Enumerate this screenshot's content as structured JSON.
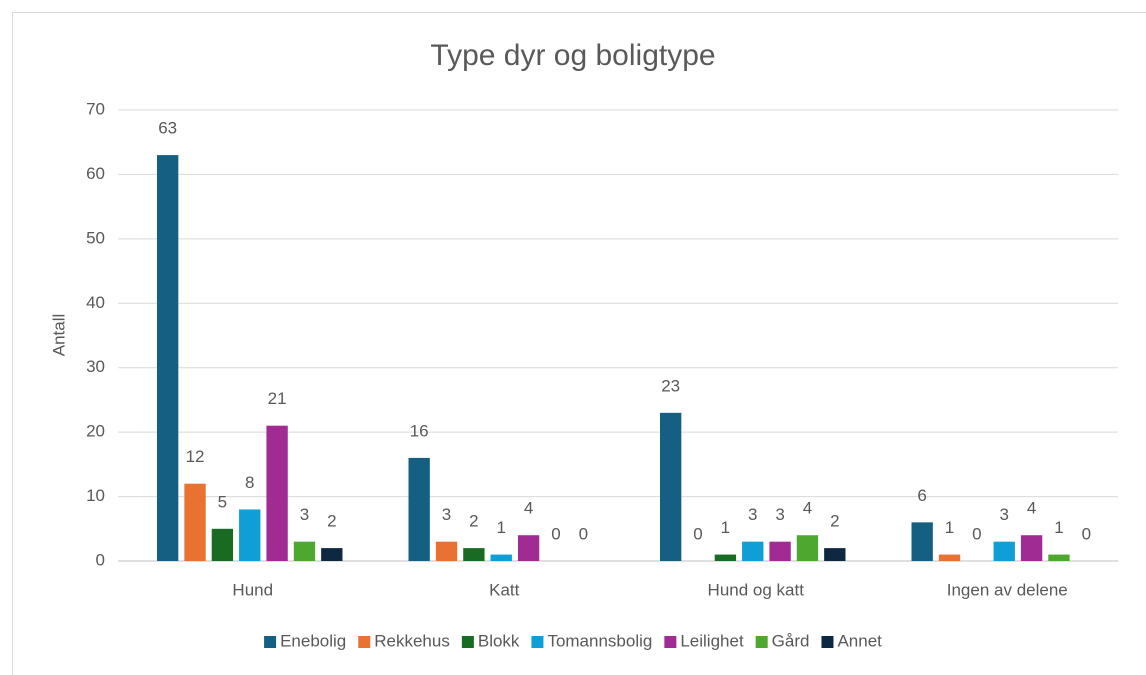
{
  "chart_data": {
    "type": "bar",
    "title": "Type dyr og boligtype",
    "ylabel": "Antall",
    "categories": [
      "Hund",
      "Katt",
      "Hund og katt",
      "Ingen av delene"
    ],
    "series": [
      {
        "name": "Enebolig",
        "color": "#156082",
        "values": [
          63,
          16,
          23,
          6
        ]
      },
      {
        "name": "Rekkehus",
        "color": "#e97132",
        "values": [
          12,
          3,
          0,
          1
        ]
      },
      {
        "name": "Blokk",
        "color": "#196b24",
        "values": [
          5,
          2,
          1,
          0
        ]
      },
      {
        "name": "Tomannsbolig",
        "color": "#0f9ed5",
        "values": [
          8,
          1,
          3,
          3
        ]
      },
      {
        "name": "Leilighet",
        "color": "#a02b93",
        "values": [
          21,
          4,
          3,
          4
        ]
      },
      {
        "name": "Gård",
        "color": "#4ea72e",
        "values": [
          3,
          0,
          4,
          1
        ]
      },
      {
        "name": "Annet",
        "color": "#0e2841",
        "values": [
          2,
          0,
          2,
          0
        ]
      }
    ],
    "ylim": [
      0,
      70
    ],
    "yticks": [
      0,
      10,
      20,
      30,
      40,
      50,
      60,
      70
    ],
    "grid": true,
    "legend": "bottom"
  }
}
